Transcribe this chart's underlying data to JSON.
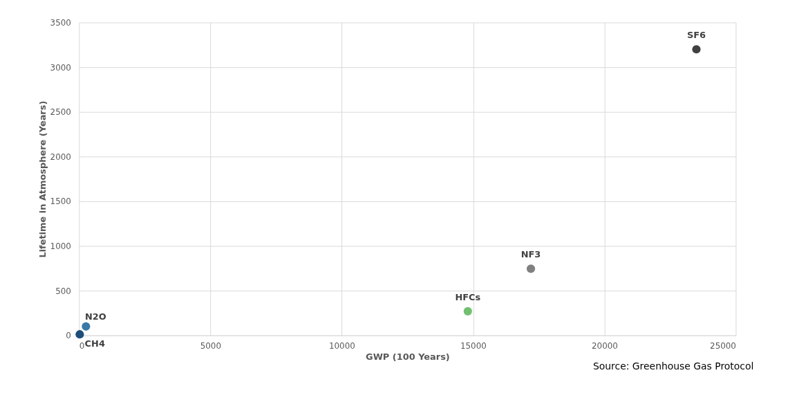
{
  "chart_data": {
    "type": "scatter",
    "xlabel": "GWP (100 Years)",
    "ylabel": "Lifetime in Atmosphere (Years)",
    "xlim": [
      0,
      25000
    ],
    "xticks": [
      0,
      5000,
      10000,
      15000,
      20000,
      25000
    ],
    "ylim": [
      0,
      3500
    ],
    "yticks": [
      0,
      500,
      1000,
      1500,
      2000,
      2500,
      3000,
      3500
    ],
    "grid": true,
    "marker": "circle",
    "series": [
      {
        "name": "CH4",
        "color": "#1f4e79",
        "x": [
          28
        ],
        "values": [
          12
        ]
      },
      {
        "name": "N2O",
        "color": "#3a78a8",
        "x": [
          265
        ],
        "values": [
          100
        ]
      },
      {
        "name": "HFCs",
        "color": "#70c070",
        "x": [
          14800
        ],
        "values": [
          270
        ]
      },
      {
        "name": "NF3",
        "color": "#808080",
        "x": [
          17200
        ],
        "values": [
          746
        ]
      },
      {
        "name": "SF6",
        "color": "#404040",
        "x": [
          23500
        ],
        "values": [
          3200
        ]
      }
    ],
    "annotations": [
      "Source: Greenhouse Gas Protocol"
    ]
  }
}
